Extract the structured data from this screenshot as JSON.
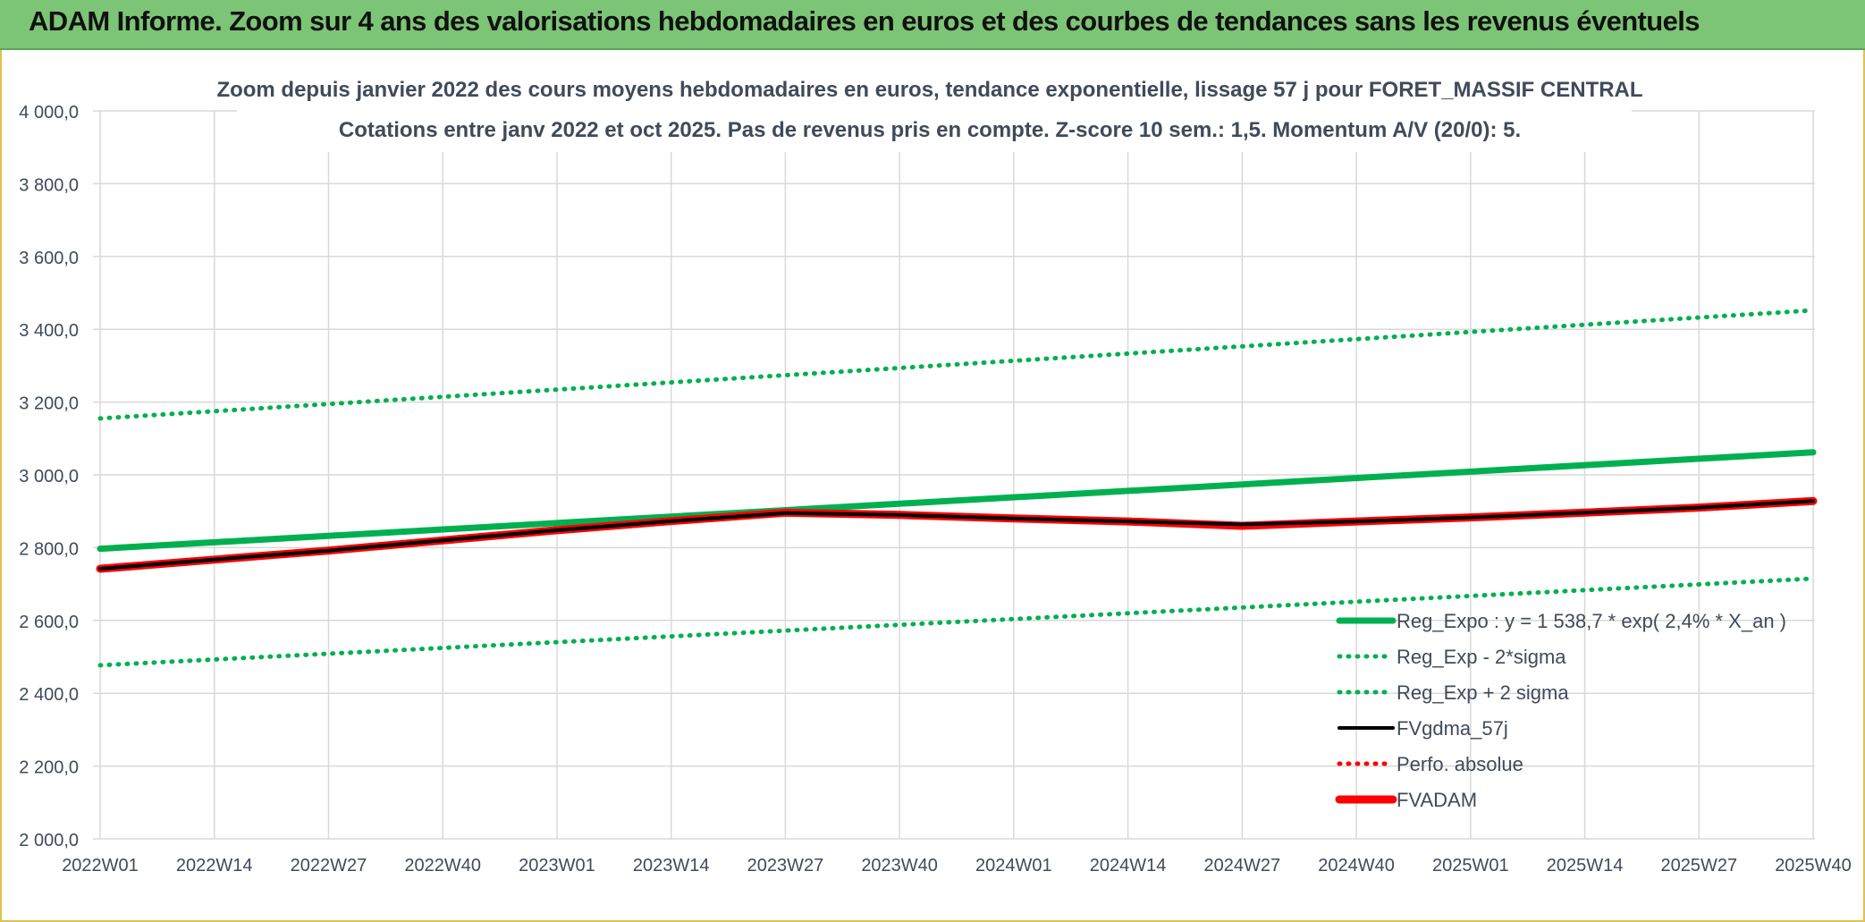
{
  "banner": {
    "title": "ADAM Informe. Zoom sur 4 ans des valorisations hebdomadaires en euros et des courbes de tendances sans les revenus éventuels"
  },
  "chart_data": {
    "type": "line",
    "title": "Zoom depuis janvier 2022 des cours moyens hebdomadaires en euros, tendance exponentielle, lissage 57 j pour FORET_MASSIF CENTRAL",
    "subtitle": "Cotations entre janv 2022 et oct 2025. Pas de revenus pris en compte. Z-score 10 sem.: 1,5. Momentum A/V (20/0): 5.",
    "xlabel": "",
    "ylabel": "",
    "x_tick_labels": [
      "2022W01",
      "2022W14",
      "2022W27",
      "2022W40",
      "2023W01",
      "2023W14",
      "2023W27",
      "2023W40",
      "2024W01",
      "2024W14",
      "2024W27",
      "2024W40",
      "2025W01",
      "2025W14",
      "2025W27",
      "2025W40"
    ],
    "y_tick_labels": [
      "4 000,0",
      "3 800,0",
      "3 600,0",
      "3 400,0",
      "3 200,0",
      "3 000,0",
      "2 800,0",
      "2 600,0",
      "2 400,0",
      "2 200,0",
      "2 000,0"
    ],
    "ylim": [
      2000,
      4000
    ],
    "xlim": [
      0,
      195
    ],
    "grid": true,
    "legend_position": "bottom-right",
    "series": [
      {
        "name": "Reg_Expo : y = 1 538,7 * exp( 2,4% *  X_an )",
        "color": "#00b050",
        "style": "solid-thick",
        "x": [
          0,
          195
        ],
        "values": [
          2797,
          3062
        ]
      },
      {
        "name": "Reg_Exp - 2*sigma",
        "color": "#00b050",
        "style": "dotted",
        "x": [
          0,
          195
        ],
        "values": [
          2477,
          2715
        ]
      },
      {
        "name": "Reg_Exp + 2 sigma",
        "color": "#00b050",
        "style": "dotted",
        "x": [
          0,
          195
        ],
        "values": [
          3155,
          3452
        ]
      },
      {
        "name": "FVgdma_57j",
        "color": "#000000",
        "style": "solid",
        "x": [
          0,
          13,
          26,
          39,
          52,
          65,
          78,
          91,
          104,
          117,
          130,
          143,
          156,
          169,
          182,
          195
        ],
        "values": [
          2742,
          2767,
          2792,
          2820,
          2848,
          2873,
          2895,
          2890,
          2880,
          2872,
          2864,
          2872,
          2883,
          2896,
          2910,
          2928
        ]
      },
      {
        "name": "Perfo. absolue",
        "color": "#ff0000",
        "style": "dotted",
        "x": [
          0,
          13,
          26,
          39,
          52,
          65,
          78,
          91,
          104,
          117,
          130,
          143,
          156,
          169,
          182,
          195
        ],
        "values": [
          2742,
          2767,
          2792,
          2820,
          2848,
          2873,
          2896,
          2890,
          2880,
          2872,
          2860,
          2872,
          2883,
          2896,
          2910,
          2928
        ]
      },
      {
        "name": "FVADAM",
        "color": "#ff0000",
        "style": "solid-thick",
        "x": [
          0,
          13,
          26,
          39,
          52,
          65,
          78,
          91,
          104,
          117,
          130,
          143,
          156,
          169,
          182,
          195
        ],
        "values": [
          2742,
          2767,
          2792,
          2820,
          2848,
          2873,
          2896,
          2890,
          2880,
          2872,
          2860,
          2872,
          2883,
          2896,
          2910,
          2928
        ]
      }
    ]
  }
}
